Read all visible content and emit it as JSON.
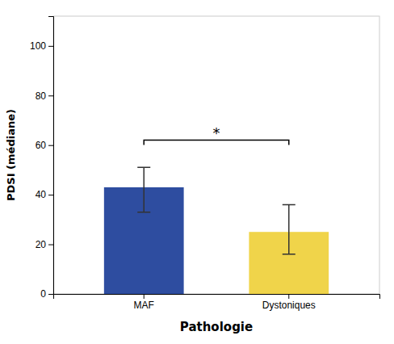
{
  "chart_data": {
    "type": "bar",
    "categories": [
      "MAF",
      "Dystoniques"
    ],
    "values": [
      43,
      25
    ],
    "error_lower": [
      10,
      9
    ],
    "error_upper": [
      8,
      11
    ],
    "colors": [
      "#2e4da0",
      "#f0d44a"
    ],
    "xlabel": "Pathologie",
    "ylabel": "PDSI (médiane)",
    "ylim": [
      0,
      112
    ],
    "yticks": [
      0,
      20,
      40,
      60,
      80,
      100
    ],
    "grid": false,
    "annotations": [
      {
        "text": "*",
        "y": 62
      }
    ]
  }
}
